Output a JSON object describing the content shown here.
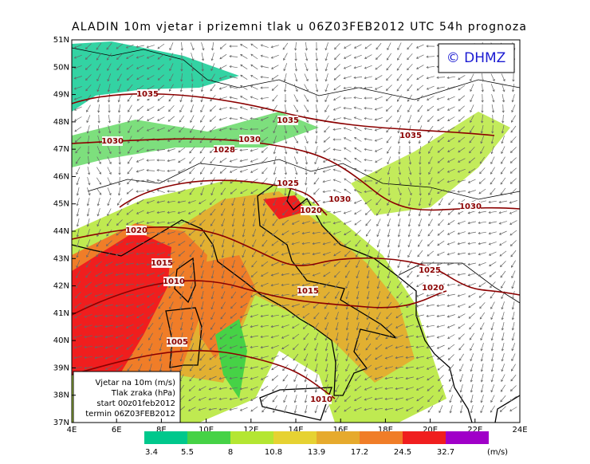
{
  "title": "ALADIN 10m vjetar i prizemni tlak u 06Z03FEB2012 UTC 54h prognoza",
  "logo": "© DHMZ",
  "lat_labels": [
    "51N",
    "50N",
    "49N",
    "48N",
    "47N",
    "46N",
    "45N",
    "44N",
    "43N",
    "42N",
    "41N",
    "40N",
    "39N",
    "38N",
    "37N"
  ],
  "lon_labels": [
    "4E",
    "6E",
    "8E",
    "10E",
    "12E",
    "14E",
    "16E",
    "18E",
    "20E",
    "22E",
    "24E"
  ],
  "isobar_labels": [
    "1035",
    "1030",
    "1030",
    "1028",
    "1035",
    "1035",
    "1025",
    "1030",
    "1020",
    "1030",
    "1020",
    "1015",
    "1010",
    "1025",
    "1020",
    "1015",
    "1005",
    "1010"
  ],
  "info_box": [
    "Vjetar na 10m (m/s)",
    "Tlak zraka (hPa)",
    "start 00z01feb2012",
    "termin 06Z03FEB2012"
  ],
  "colorbar": {
    "values": [
      3.4,
      5.5,
      8,
      10.8,
      13.9,
      17.2,
      24.5,
      32.7
    ],
    "colors": [
      "#00c88c",
      "#46d246",
      "#b4e632",
      "#e6d232",
      "#e6aa2d",
      "#f07d28",
      "#f01e1e",
      "#a000c8"
    ],
    "unit": "(m/s)"
  }
}
